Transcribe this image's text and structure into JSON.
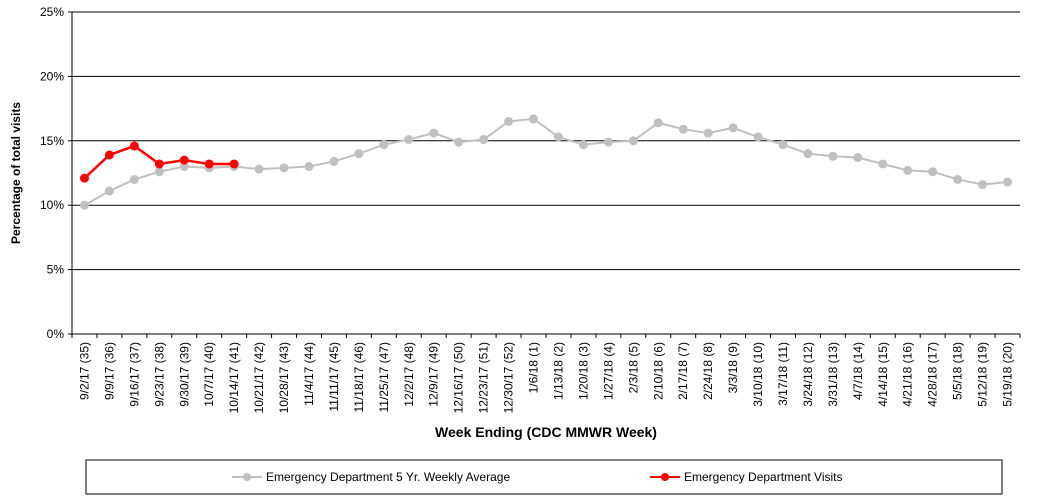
{
  "chart_data": {
    "type": "line",
    "y_label": "Percentage of total visits",
    "x_label": "Week Ending (CDC MMWR Week)",
    "categories": [
      "9/2/17 (35)",
      "9/9/17 (36)",
      "9/16/17 (37)",
      "9/23/17 (38)",
      "9/30/17 (39)",
      "10/7/17 (40)",
      "10/14/17 (41)",
      "10/21/17 (42)",
      "10/28/17 (43)",
      "11/4/17 (44)",
      "11/11/17 (45)",
      "11/18/17 (46)",
      "11/25/17 (47)",
      "12/2/17 (48)",
      "12/9/17 (49)",
      "12/16/17 (50)",
      "12/23/17 (51)",
      "12/30/17 (52)",
      "1/6/18 (1)",
      "1/13/18 (2)",
      "1/20/18 (3)",
      "1/27/18 (4)",
      "2/3/18 (5)",
      "2/10/18 (6)",
      "2/17/18 (7)",
      "2/24/18 (8)",
      "3/3/18 (9)",
      "3/10/18 (10)",
      "3/17/18 (11)",
      "3/24/18 (12)",
      "3/31/18 (13)",
      "4/7/18 (14)",
      "4/14/18 (15)",
      "4/21/18 (16)",
      "4/28/18 (17)",
      "5/5/18 (18)",
      "5/12/18 (19)",
      "5/19/18 (20)"
    ],
    "series": [
      {
        "name": "Emergency Department 5 Yr. Weekly Average",
        "color": "#c0c0c0",
        "values": [
          10.0,
          11.1,
          12.0,
          12.6,
          13.0,
          12.9,
          13.0,
          12.8,
          12.9,
          13.0,
          13.4,
          14.0,
          14.7,
          15.1,
          15.6,
          14.9,
          15.1,
          16.5,
          16.7,
          15.3,
          14.7,
          14.9,
          15.0,
          16.4,
          15.9,
          15.6,
          16.0,
          15.3,
          14.7,
          14.0,
          13.8,
          13.7,
          13.2,
          12.7,
          12.6,
          12.0,
          11.6,
          11.8
        ]
      },
      {
        "name": "Emergency Department Visits",
        "color": "#ff0000",
        "values": [
          12.1,
          13.9,
          14.6,
          13.2,
          13.5,
          13.2,
          13.2,
          null,
          null,
          null,
          null,
          null,
          null,
          null,
          null,
          null,
          null,
          null,
          null,
          null,
          null,
          null,
          null,
          null,
          null,
          null,
          null,
          null,
          null,
          null,
          null,
          null,
          null,
          null,
          null,
          null,
          null,
          null
        ]
      }
    ],
    "ylim": [
      0,
      25
    ],
    "yticks": [
      {
        "value": 0,
        "label": "0%"
      },
      {
        "value": 5,
        "label": "5%"
      },
      {
        "value": 10,
        "label": "10%"
      },
      {
        "value": 15,
        "label": "15%"
      },
      {
        "value": 20,
        "label": "20%"
      },
      {
        "value": 25,
        "label": "25%"
      }
    ],
    "grid": true
  }
}
